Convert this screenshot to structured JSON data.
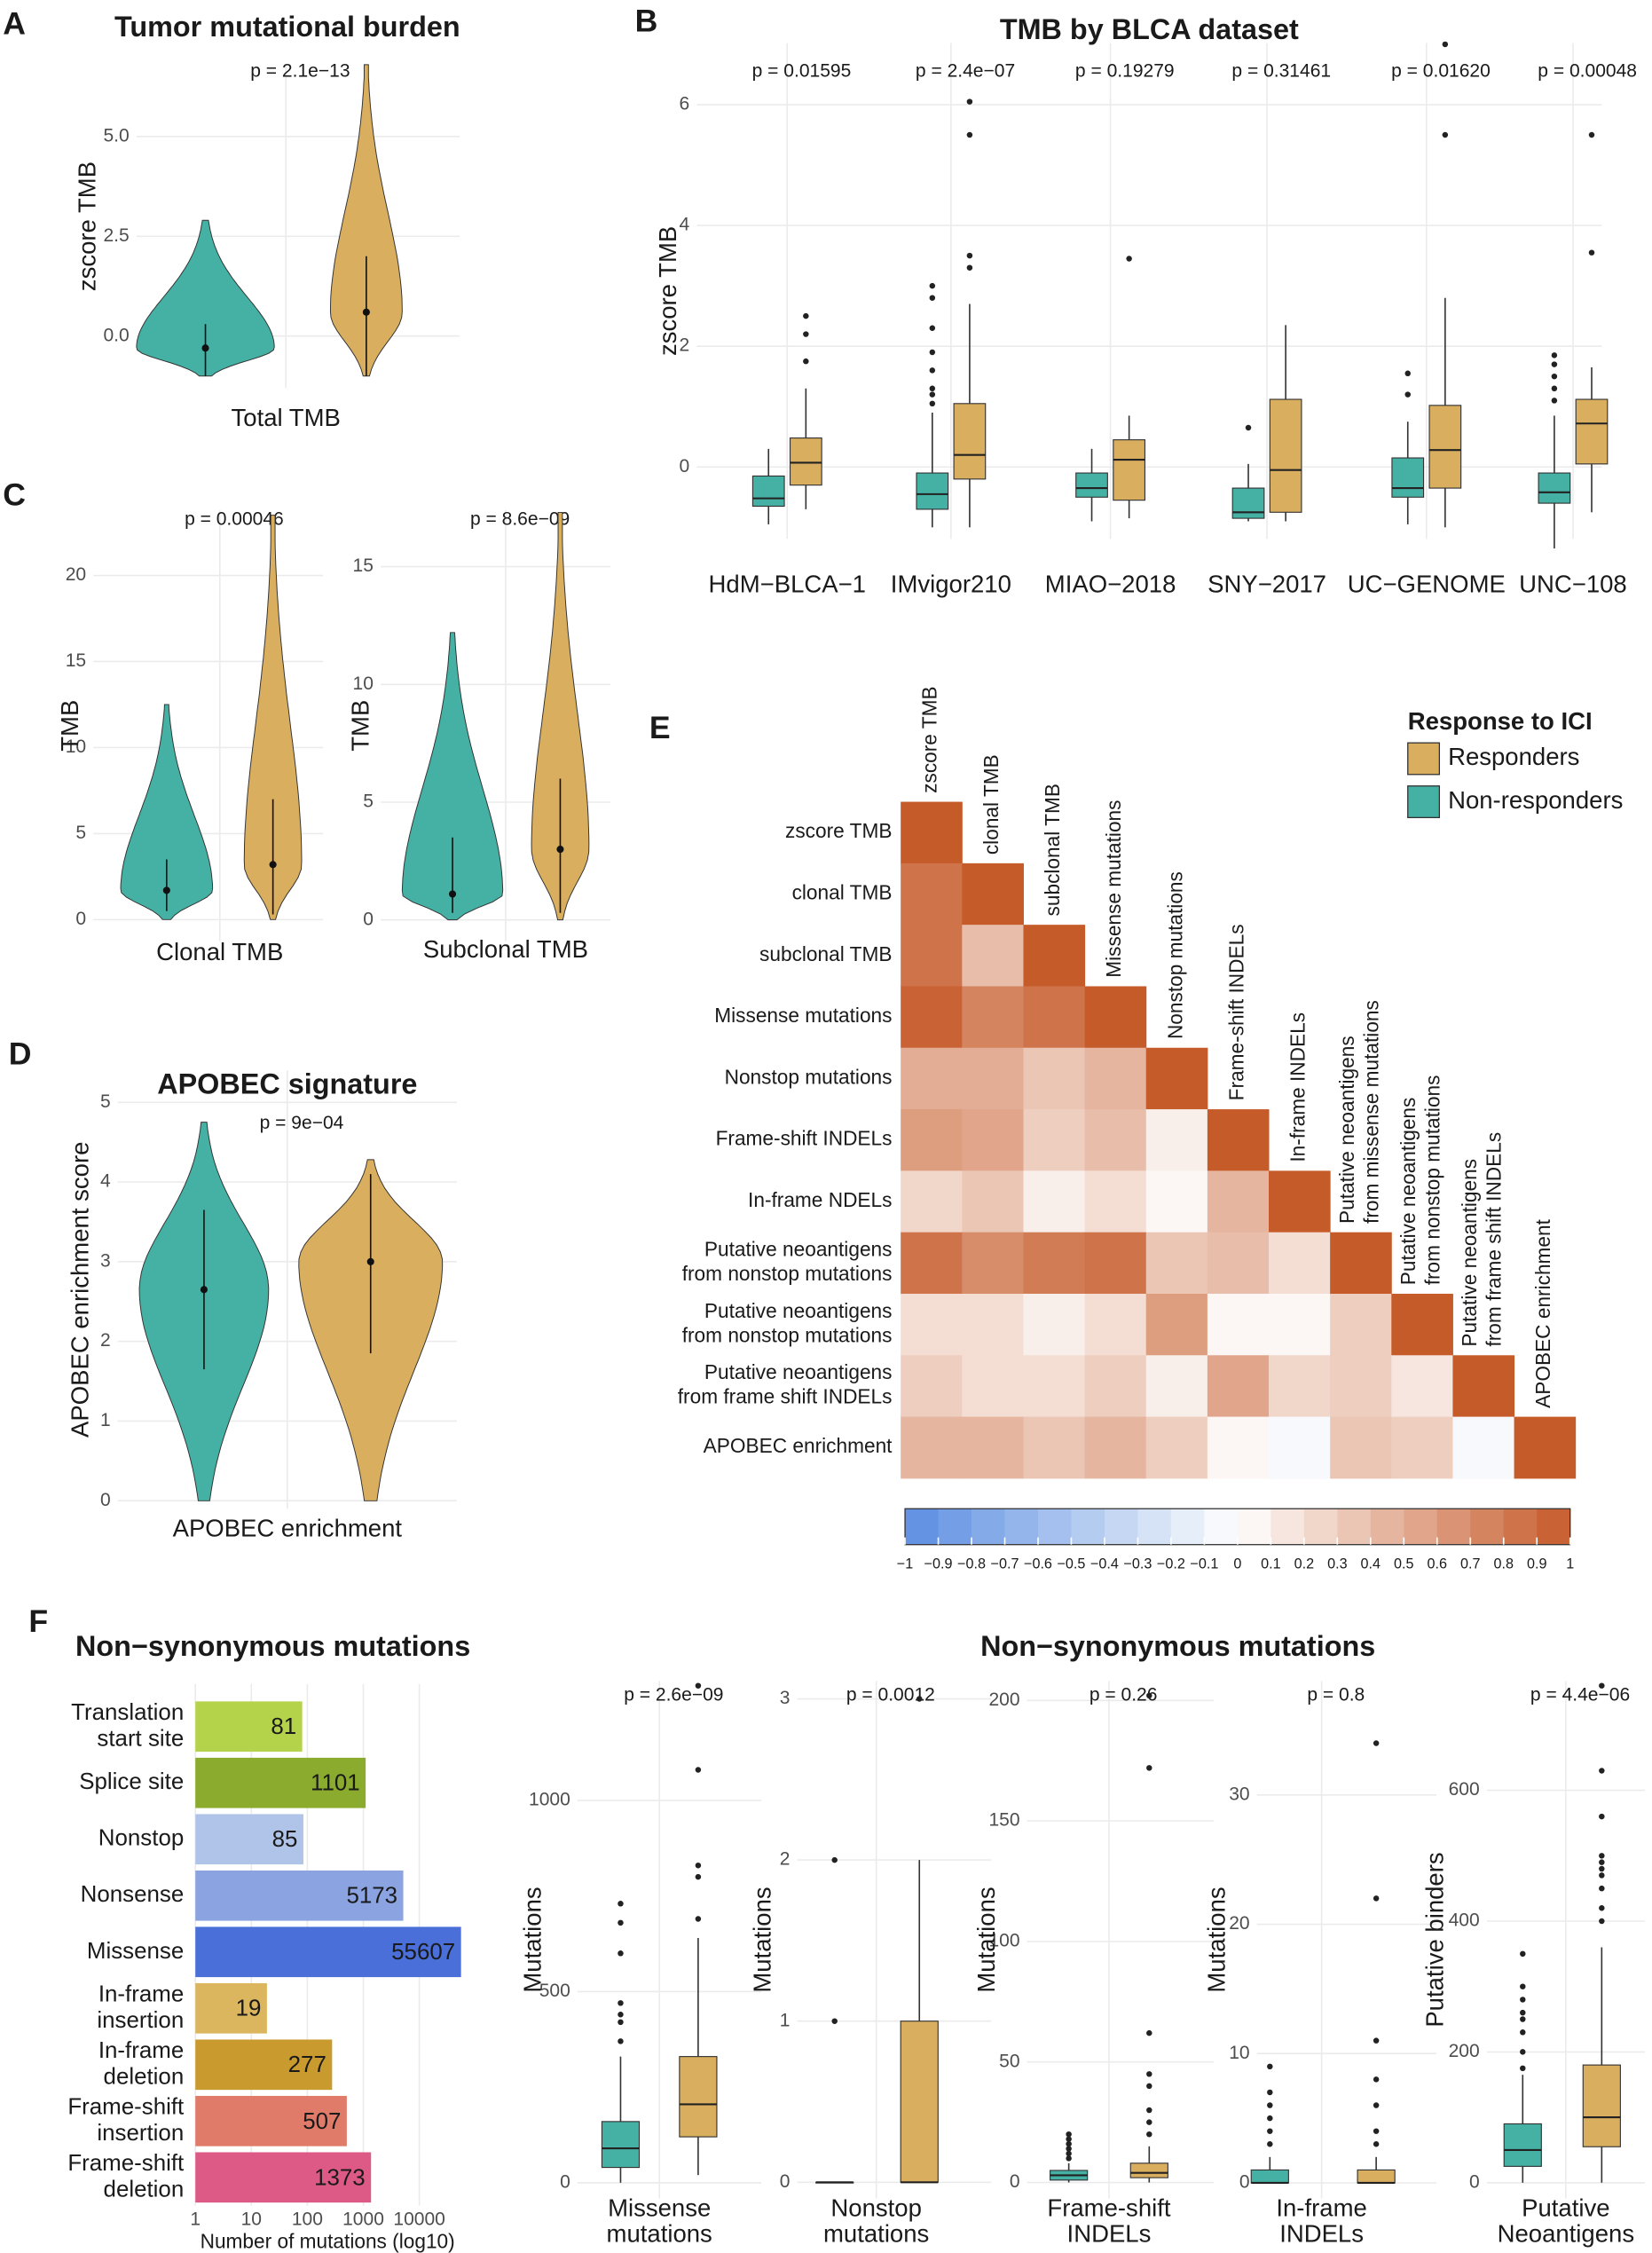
{
  "panel_labels": [
    "A",
    "B",
    "C",
    "D",
    "E",
    "F"
  ],
  "section_titles": [
    "Non−synonymous mutations"
  ],
  "legend": {
    "title": "Response to ICI",
    "items": [
      {
        "name": "Responders",
        "color": "#d9ae5f"
      },
      {
        "name": "Non-responders",
        "color": "#45b0a4"
      }
    ]
  },
  "chart_data": [
    {
      "type": "violin",
      "title": "Tumor mutational burden",
      "ylabel": "zscore TMB",
      "categories": [
        [
          "Total TMB"
        ]
      ],
      "p_values": [
        "p = 2.1e−13"
      ],
      "ylim": [
        -1.3,
        6.8
      ],
      "yticks": [
        {
          "value": 0,
          "label": "0.0"
        },
        {
          "value": 2.5,
          "label": "2.5"
        },
        {
          "value": 5,
          "label": "5.0"
        }
      ],
      "grid": true,
      "series": [
        {
          "color": "#45b0a4",
          "violins": [
            {
              "min": -1.0,
              "lo": -1.0,
              "median": -0.3,
              "hi": 0.3,
              "max": 2.9
            }
          ]
        },
        {
          "color": "#d9ae5f",
          "violins": [
            {
              "min": -1.0,
              "lo": -1.0,
              "median": 0.6,
              "hi": 2.0,
              "max": 6.8
            }
          ]
        }
      ]
    },
    {
      "type": "box",
      "title": "TMB by BLCA dataset",
      "ylabel": "zscore TMB",
      "categories": [
        [
          "HdM−BLCA−1"
        ],
        [
          "IMvigor210"
        ],
        [
          "MIAO−2018"
        ],
        [
          "SNY−2017"
        ],
        [
          "UC−GENOME"
        ],
        [
          "UNC−108"
        ]
      ],
      "p_values": [
        "p = 0.01595",
        "p = 2.4e−07",
        "p = 0.19279",
        "p = 0.31461",
        "p = 0.01620",
        "p = 0.00048"
      ],
      "ylim": [
        -1.19,
        7.02
      ],
      "yticks": [
        0,
        2,
        4,
        6
      ],
      "grid": true,
      "series": [
        {
          "color": "#45b0a4",
          "boxes": [
            {
              "min": -0.95,
              "q1": -0.65,
              "median": -0.52,
              "q3": -0.15,
              "max": 0.3,
              "outliers": []
            },
            {
              "min": -1.0,
              "q1": -0.7,
              "median": -0.45,
              "q3": -0.1,
              "max": 0.9,
              "outliers": [
                1.05,
                1.2,
                1.3,
                1.6,
                1.9,
                2.3,
                2.8,
                3.0
              ]
            },
            {
              "min": -0.9,
              "q1": -0.5,
              "median": -0.35,
              "q3": -0.1,
              "max": 0.3,
              "outliers": []
            },
            {
              "min": -0.9,
              "q1": -0.85,
              "median": -0.75,
              "q3": -0.35,
              "max": 0.05,
              "outliers": [
                0.65
              ]
            },
            {
              "min": -0.95,
              "q1": -0.5,
              "median": -0.35,
              "q3": 0.15,
              "max": 0.75,
              "outliers": [
                1.2,
                1.55
              ]
            },
            {
              "min": -1.35,
              "q1": -0.6,
              "median": -0.42,
              "q3": -0.1,
              "max": 0.85,
              "outliers": [
                1.1,
                1.3,
                1.5,
                1.7,
                1.85
              ]
            }
          ]
        },
        {
          "color": "#d9ae5f",
          "boxes": [
            {
              "min": -0.7,
              "q1": -0.3,
              "median": 0.07,
              "q3": 0.48,
              "max": 1.3,
              "outliers": [
                1.75,
                2.2,
                2.5
              ]
            },
            {
              "min": -1.0,
              "q1": -0.2,
              "median": 0.2,
              "q3": 1.05,
              "max": 2.7,
              "outliers": [
                3.3,
                3.5,
                5.5,
                6.05
              ]
            },
            {
              "min": -0.85,
              "q1": -0.55,
              "median": 0.12,
              "q3": 0.45,
              "max": 0.85,
              "outliers": [
                3.45
              ]
            },
            {
              "min": -0.9,
              "q1": -0.75,
              "median": -0.05,
              "q3": 1.12,
              "max": 2.35,
              "outliers": []
            },
            {
              "min": -1.0,
              "q1": -0.35,
              "median": 0.28,
              "q3": 1.02,
              "max": 2.8,
              "outliers": [
                5.5,
                7.0
              ]
            },
            {
              "min": -0.75,
              "q1": 0.05,
              "median": 0.72,
              "q3": 1.12,
              "max": 1.65,
              "outliers": [
                3.55,
                5.5
              ]
            }
          ]
        }
      ]
    },
    {
      "type": "violin",
      "ylabel": "TMB",
      "categories": [
        [
          "Clonal TMB"
        ]
      ],
      "p_values": [
        "p = 0.00046"
      ],
      "ylim": [
        -1.25,
        23.8
      ],
      "yticks": [
        0,
        5,
        10,
        15,
        20
      ],
      "grid": true,
      "series": [
        {
          "color": "#45b0a4",
          "violins": [
            {
              "min": 0,
              "lo": 0.5,
              "median": 1.7,
              "hi": 3.5,
              "max": 12.5
            }
          ]
        },
        {
          "color": "#d9ae5f",
          "violins": [
            {
              "min": 0,
              "lo": 0.3,
              "median": 3.2,
              "hi": 7,
              "max": 23.5
            }
          ]
        }
      ]
    },
    {
      "type": "violin",
      "ylabel": "TMB",
      "categories": [
        [
          "Subclonal TMB"
        ]
      ],
      "p_values": [
        "p = 8.6e−09"
      ],
      "ylim": [
        -0.9,
        17.4
      ],
      "yticks": [
        0,
        5,
        10,
        15
      ],
      "grid": true,
      "series": [
        {
          "color": "#45b0a4",
          "violins": [
            {
              "min": 0,
              "lo": 0.3,
              "median": 1.1,
              "hi": 3.5,
              "max": 12.2
            }
          ]
        },
        {
          "color": "#d9ae5f",
          "violins": [
            {
              "min": 0,
              "lo": 0.3,
              "median": 3.0,
              "hi": 6,
              "max": 17.3
            }
          ]
        }
      ]
    },
    {
      "type": "violin",
      "title": "APOBEC signature",
      "ylabel": "APOBEC enrichment score",
      "categories": [
        [
          "APOBEC enrichment"
        ]
      ],
      "p_values": [
        "p = 9e−04"
      ],
      "ylim": [
        -0.1,
        5.4
      ],
      "yticks": [
        0,
        1,
        2,
        3,
        4,
        5
      ],
      "grid": true,
      "series": [
        {
          "color": "#45b0a4",
          "violins": [
            {
              "min": 0,
              "lo": 1.65,
              "median": 2.65,
              "hi": 3.65,
              "max": 4.75
            }
          ]
        },
        {
          "color": "#d9ae5f",
          "violins": [
            {
              "min": 0,
              "lo": 1.85,
              "median": 3.0,
              "hi": 4.1,
              "max": 4.28
            }
          ]
        }
      ]
    },
    {
      "type": "heatmap",
      "rows": [
        [
          "zscore TMB"
        ],
        [
          "clonal TMB"
        ],
        [
          "subclonal TMB"
        ],
        [
          "Missense mutations"
        ],
        [
          "Nonstop mutations"
        ],
        [
          "Frame-shift INDELs"
        ],
        [
          "In-frame NDELs"
        ],
        [
          "Putative neoantigens",
          "from nonstop mutations"
        ],
        [
          "Putative neoantigens",
          "from nonstop mutations"
        ],
        [
          "Putative neoantigens",
          "from frame shift INDELs"
        ],
        [
          "APOBEC enrichment"
        ]
      ],
      "columns": [
        [
          "zscore TMB"
        ],
        [
          "clonal TMB"
        ],
        [
          "subclonal TMB"
        ],
        [
          "Missense mutations"
        ],
        [
          "Nonstop mutations"
        ],
        [
          "Frame-shift INDELs"
        ],
        [
          "In-frame INDELs"
        ],
        [
          "Putative neoantigens",
          "from missense mutations"
        ],
        [
          "Putative neoantigens",
          "from nonstop mutations"
        ],
        [
          "Putative neoantigens",
          "from frame shift INDELs"
        ],
        [
          "APOBEC enrichment"
        ]
      ],
      "values": [
        [
          1
        ],
        [
          0.85,
          1
        ],
        [
          0.85,
          0.4,
          1
        ],
        [
          0.95,
          0.75,
          0.85,
          1
        ],
        [
          0.5,
          0.5,
          0.35,
          0.45,
          1
        ],
        [
          0.6,
          0.55,
          0.3,
          0.4,
          0.1,
          1
        ],
        [
          0.25,
          0.35,
          0.1,
          0.2,
          0.05,
          0.45,
          1
        ],
        [
          0.85,
          0.7,
          0.8,
          0.85,
          0.35,
          0.4,
          0.2,
          1
        ],
        [
          0.2,
          0.2,
          0.1,
          0.2,
          0.6,
          0.05,
          0.05,
          0.3,
          1
        ],
        [
          0.3,
          0.2,
          0.2,
          0.3,
          0.1,
          0.55,
          0.25,
          0.3,
          0.15,
          1
        ],
        [
          0.45,
          0.45,
          0.35,
          0.45,
          0.3,
          0.05,
          -0.05,
          0.35,
          0.3,
          -0.05,
          1
        ]
      ],
      "colorscale": [
        "#5b8de0",
        "#ffffff",
        "#c65b2a"
      ],
      "clim": [
        -1,
        1
      ],
      "colorbar_ticks": [
        {
          "value": -1,
          "label": "−1"
        },
        {
          "value": -0.9,
          "label": "−0.9"
        },
        {
          "value": -0.8,
          "label": "−0.8"
        },
        {
          "value": -0.7,
          "label": "−0.7"
        },
        {
          "value": -0.6,
          "label": "−0.6"
        },
        {
          "value": -0.5,
          "label": "−0.5"
        },
        {
          "value": -0.4,
          "label": "−0.4"
        },
        {
          "value": -0.3,
          "label": "−0.3"
        },
        {
          "value": -0.2,
          "label": "−0.2"
        },
        {
          "value": -0.1,
          "label": "−0.1"
        },
        0,
        0.1,
        0.2,
        0.3,
        0.4,
        0.5,
        0.6,
        0.7,
        0.8,
        0.9,
        1
      ]
    },
    {
      "type": "hbar",
      "title": "Non−synonymous mutations",
      "xlabel": "Number of mutations (log10)",
      "log_x": true,
      "categories": [
        [
          "Translation",
          "start site"
        ],
        [
          "Splice site"
        ],
        [
          "Nonstop"
        ],
        [
          "Nonsense"
        ],
        [
          "Missense"
        ],
        [
          "In-frame",
          "insertion"
        ],
        [
          "In-frame",
          "deletion"
        ],
        [
          "Frame-shift",
          "insertion"
        ],
        [
          "Frame-shift",
          "deletion"
        ]
      ],
      "values": [
        81,
        1101,
        85,
        5173,
        55607,
        19,
        277,
        507,
        1373
      ],
      "colors": [
        "#b5d34a",
        "#8aab2e",
        "#b0c4ea",
        "#8ba3e0",
        "#4a6fd8",
        "#dbb65e",
        "#c99a2e",
        "#e07b6a",
        "#dc5a85"
      ],
      "xlim": [
        1,
        95000
      ],
      "xticks": [
        1,
        10,
        100,
        1000,
        10000
      ],
      "grid": true
    },
    {
      "type": "box",
      "ylabel": "Mutations",
      "categories": [
        [
          "Missense",
          "mutations"
        ]
      ],
      "p_values": [
        "p = 2.6e−09"
      ],
      "ylim": [
        -41,
        1312
      ],
      "yticks": [
        0,
        500,
        1000
      ],
      "grid": true,
      "series": [
        {
          "color": "#45b0a4",
          "boxes": [
            {
              "min": 0,
              "q1": 40,
              "median": 90,
              "q3": 160,
              "max": 330,
              "outliers": [
                370,
                420,
                440,
                470,
                600,
                680,
                730
              ]
            }
          ]
        },
        {
          "color": "#d9ae5f",
          "boxes": [
            {
              "min": 20,
              "q1": 120,
              "median": 205,
              "q3": 330,
              "max": 640,
              "outliers": [
                690,
                800,
                830,
                1080,
                1300
              ]
            }
          ]
        }
      ]
    },
    {
      "type": "box",
      "ylabel": "Mutations",
      "categories": [
        [
          "Nonstop",
          "mutations"
        ]
      ],
      "p_values": [
        "p = 0.0012"
      ],
      "ylim": [
        -0.1,
        3.11
      ],
      "yticks": [
        0,
        1,
        2,
        3
      ],
      "grid": true,
      "series": [
        {
          "color": "#45b0a4",
          "boxes": [
            {
              "min": 0,
              "q1": 0,
              "median": 0,
              "q3": 0,
              "max": 0,
              "outliers": [
                1,
                2
              ]
            }
          ]
        },
        {
          "color": "#d9ae5f",
          "boxes": [
            {
              "min": 0,
              "q1": 0,
              "median": 0,
              "q3": 1,
              "max": 2,
              "outliers": [
                3
              ]
            }
          ]
        }
      ]
    },
    {
      "type": "box",
      "ylabel": "Mutations",
      "categories": [
        [
          "Frame-shift",
          "INDELs"
        ]
      ],
      "p_values": [
        "p = 0.26"
      ],
      "ylim": [
        -6.6,
        208
      ],
      "yticks": [
        0,
        50,
        100,
        150,
        200
      ],
      "grid": true,
      "series": [
        {
          "color": "#45b0a4",
          "boxes": [
            {
              "min": 0,
              "q1": 1,
              "median": 3,
              "q3": 5,
              "max": 8,
              "outliers": [
                10,
                12,
                14,
                16,
                18,
                20
              ]
            }
          ]
        },
        {
          "color": "#d9ae5f",
          "boxes": [
            {
              "min": 0,
              "q1": 2,
              "median": 4,
              "q3": 8,
              "max": 15,
              "outliers": [
                20,
                25,
                30,
                40,
                45,
                62,
                172,
                202
              ]
            }
          ]
        }
      ]
    },
    {
      "type": "box",
      "ylabel": "Mutations",
      "categories": [
        [
          "In-frame",
          "INDELs"
        ]
      ],
      "p_values": [
        "p = 0.8"
      ],
      "ylim": [
        -1.2,
        38.8
      ],
      "yticks": [
        0,
        10,
        20,
        30
      ],
      "grid": true,
      "series": [
        {
          "color": "#45b0a4",
          "boxes": [
            {
              "min": 0,
              "q1": 0,
              "median": 0,
              "q3": 1,
              "max": 2,
              "outliers": [
                3,
                4,
                5,
                6,
                7,
                9
              ]
            }
          ]
        },
        {
          "color": "#d9ae5f",
          "boxes": [
            {
              "min": 0,
              "q1": 0,
              "median": 0,
              "q3": 1,
              "max": 2,
              "outliers": [
                3,
                4,
                6,
                8,
                11,
                22,
                34
              ]
            }
          ]
        }
      ]
    },
    {
      "type": "box",
      "ylabel": "Putative binders",
      "categories": [
        [
          "Putative",
          "Neoantigens"
        ]
      ],
      "p_values": [
        "p = 4.4e−06"
      ],
      "ylim": [
        -24,
        767
      ],
      "yticks": [
        0,
        200,
        400,
        600
      ],
      "grid": true,
      "series": [
        {
          "color": "#45b0a4",
          "boxes": [
            {
              "min": 0,
              "q1": 25,
              "median": 50,
              "q3": 90,
              "max": 165,
              "outliers": [
                175,
                200,
                230,
                250,
                260,
                280,
                300,
                350
              ]
            }
          ]
        },
        {
          "color": "#d9ae5f",
          "boxes": [
            {
              "min": 0,
              "q1": 55,
              "median": 100,
              "q3": 180,
              "max": 360,
              "outliers": [
                400,
                420,
                450,
                470,
                480,
                490,
                500,
                560,
                630,
                760
              ]
            }
          ]
        }
      ]
    }
  ]
}
